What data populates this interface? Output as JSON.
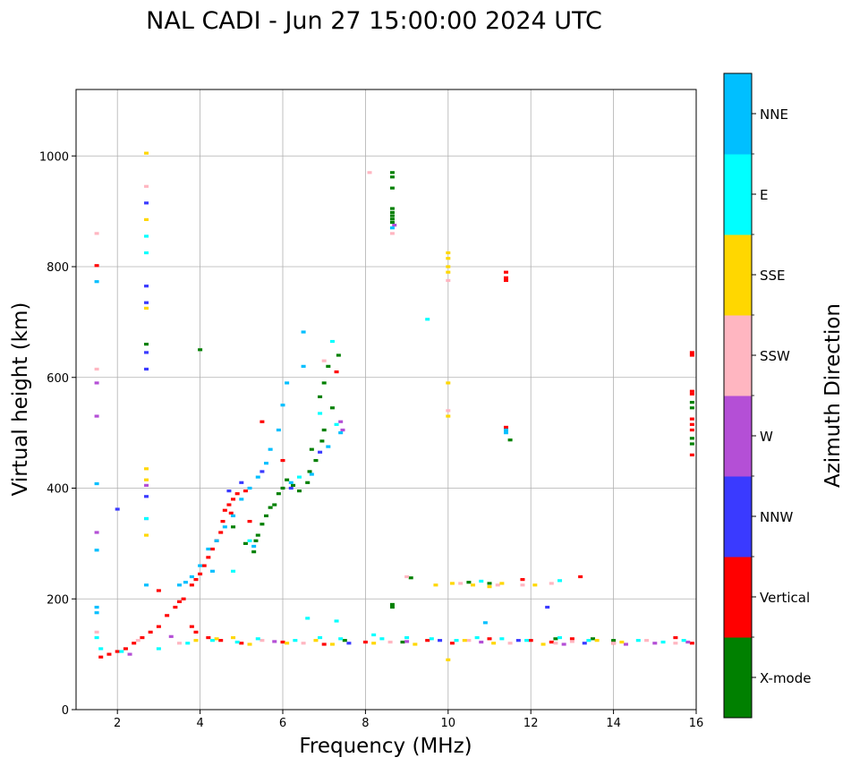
{
  "chart_data": {
    "type": "scatter",
    "title": "NAL CADI - Jun 27 15:00:00 2024 UTC",
    "xlabel": "Frequency (MHz)",
    "ylabel": "Virtual height (km)",
    "xlim": [
      1,
      16
    ],
    "ylim": [
      0,
      1120
    ],
    "xticks": [
      2,
      4,
      6,
      8,
      10,
      12,
      14,
      16
    ],
    "yticks": [
      0,
      200,
      400,
      600,
      800,
      1000
    ],
    "grid": true,
    "colorbar": {
      "label": "Azimuth Direction",
      "categories": [
        {
          "name": "X-mode",
          "color": "#008000"
        },
        {
          "name": "Vertical",
          "color": "#ff0000"
        },
        {
          "name": "NNW",
          "color": "#3a3aff"
        },
        {
          "name": "W",
          "color": "#b44fd6"
        },
        {
          "name": "SSW",
          "color": "#ffb6c1"
        },
        {
          "name": "SSE",
          "color": "#ffd700"
        },
        {
          "name": "E",
          "color": "#00ffff"
        },
        {
          "name": "NNE",
          "color": "#00bfff"
        }
      ]
    },
    "series": [
      {
        "name": "X-mode",
        "points": [
          [
            8.65,
            970
          ],
          [
            8.65,
            962
          ],
          [
            8.65,
            942
          ],
          [
            8.65,
            905
          ],
          [
            8.65,
            898
          ],
          [
            8.65,
            892
          ],
          [
            8.65,
            886
          ],
          [
            8.65,
            880
          ],
          [
            8.65,
            190
          ],
          [
            8.65,
            185
          ],
          [
            7.35,
            640
          ],
          [
            7.1,
            620
          ],
          [
            7.0,
            590
          ],
          [
            6.9,
            565
          ],
          [
            7.2,
            545
          ],
          [
            7.0,
            505
          ],
          [
            6.95,
            485
          ],
          [
            6.7,
            470
          ],
          [
            6.8,
            450
          ],
          [
            6.65,
            430
          ],
          [
            6.6,
            410
          ],
          [
            6.1,
            415
          ],
          [
            6.0,
            400
          ],
          [
            5.9,
            390
          ],
          [
            5.8,
            370
          ],
          [
            5.7,
            365
          ],
          [
            5.6,
            350
          ],
          [
            5.5,
            335
          ],
          [
            5.4,
            315
          ],
          [
            5.35,
            305
          ],
          [
            4.0,
            650
          ],
          [
            2.7,
            660
          ],
          [
            9.1,
            238
          ],
          [
            10.5,
            230
          ],
          [
            11.5,
            487
          ],
          [
            11.0,
            228
          ],
          [
            12.6,
            128
          ],
          [
            13.5,
            128
          ],
          [
            14.0,
            125
          ],
          [
            15.9,
            555
          ],
          [
            15.9,
            545
          ],
          [
            15.9,
            490
          ],
          [
            15.9,
            480
          ],
          [
            5.3,
            285
          ],
          [
            5.1,
            300
          ],
          [
            4.8,
            330
          ],
          [
            6.4,
            395
          ],
          [
            6.25,
            405
          ],
          [
            7.5,
            125
          ],
          [
            8.9,
            122
          ]
        ]
      },
      {
        "name": "Vertical",
        "points": [
          [
            1.5,
            802
          ],
          [
            11.4,
            790
          ],
          [
            11.4,
            780
          ],
          [
            11.4,
            775
          ],
          [
            15.9,
            645
          ],
          [
            15.9,
            640
          ],
          [
            15.9,
            575
          ],
          [
            15.9,
            570
          ],
          [
            15.9,
            525
          ],
          [
            15.9,
            515
          ],
          [
            15.9,
            505
          ],
          [
            15.9,
            460
          ],
          [
            11.4,
            510
          ],
          [
            7.3,
            610
          ],
          [
            6.0,
            450
          ],
          [
            5.5,
            520
          ],
          [
            5.1,
            395
          ],
          [
            4.9,
            390
          ],
          [
            4.8,
            380
          ],
          [
            4.7,
            370
          ],
          [
            4.6,
            360
          ],
          [
            4.55,
            340
          ],
          [
            4.5,
            320
          ],
          [
            4.4,
            305
          ],
          [
            4.3,
            290
          ],
          [
            4.2,
            275
          ],
          [
            4.1,
            260
          ],
          [
            4.0,
            245
          ],
          [
            3.9,
            235
          ],
          [
            3.8,
            225
          ],
          [
            3.6,
            200
          ],
          [
            3.4,
            185
          ],
          [
            3.2,
            170
          ],
          [
            3.0,
            150
          ],
          [
            2.8,
            140
          ],
          [
            2.6,
            130
          ],
          [
            2.4,
            120
          ],
          [
            2.2,
            110
          ],
          [
            2.0,
            105
          ],
          [
            1.8,
            100
          ],
          [
            1.6,
            95
          ],
          [
            3.8,
            150
          ],
          [
            3.9,
            140
          ],
          [
            4.2,
            130
          ],
          [
            4.5,
            125
          ],
          [
            5.0,
            120
          ],
          [
            6.0,
            122
          ],
          [
            7.0,
            118
          ],
          [
            8.0,
            122
          ],
          [
            9.5,
            125
          ],
          [
            10.1,
            120
          ],
          [
            11.0,
            128
          ],
          [
            11.8,
            235
          ],
          [
            12.0,
            125
          ],
          [
            12.5,
            122
          ],
          [
            13.0,
            128
          ],
          [
            13.2,
            240
          ],
          [
            14.0,
            120
          ],
          [
            15.5,
            130
          ],
          [
            15.9,
            120
          ],
          [
            3.0,
            215
          ],
          [
            3.5,
            195
          ],
          [
            5.2,
            340
          ],
          [
            4.75,
            355
          ]
        ]
      },
      {
        "name": "NNW",
        "points": [
          [
            2.7,
            915
          ],
          [
            2.7,
            765
          ],
          [
            2.7,
            735
          ],
          [
            2.7,
            645
          ],
          [
            2.7,
            615
          ],
          [
            2.7,
            385
          ],
          [
            2.7,
            345
          ],
          [
            2.0,
            362
          ],
          [
            12.4,
            185
          ],
          [
            5.0,
            410
          ],
          [
            5.5,
            430
          ],
          [
            6.2,
            400
          ],
          [
            7.6,
            120
          ],
          [
            9.8,
            125
          ],
          [
            11.7,
            125
          ],
          [
            13.3,
            120
          ],
          [
            4.7,
            395
          ],
          [
            6.9,
            465
          ]
        ]
      },
      {
        "name": "W",
        "points": [
          [
            1.5,
            530
          ],
          [
            1.5,
            320
          ],
          [
            1.5,
            590
          ],
          [
            2.7,
            405
          ],
          [
            8.7,
            875
          ],
          [
            7.4,
            520
          ],
          [
            7.45,
            505
          ],
          [
            9.0,
            123
          ],
          [
            10.8,
            122
          ],
          [
            14.3,
            118
          ],
          [
            15.0,
            120
          ],
          [
            15.8,
            122
          ],
          [
            2.3,
            100
          ],
          [
            3.3,
            132
          ],
          [
            5.8,
            123
          ],
          [
            12.8,
            118
          ]
        ]
      },
      {
        "name": "SSW",
        "points": [
          [
            1.5,
            860
          ],
          [
            1.5,
            615
          ],
          [
            2.7,
            945
          ],
          [
            8.1,
            970
          ],
          [
            8.65,
            860
          ],
          [
            10.0,
            775
          ],
          [
            10.0,
            540
          ],
          [
            9.0,
            240
          ],
          [
            10.3,
            228
          ],
          [
            11.2,
            225
          ],
          [
            11.8,
            225
          ],
          [
            12.5,
            228
          ],
          [
            13.0,
            123
          ],
          [
            14.0,
            120
          ],
          [
            1.5,
            140
          ],
          [
            2.5,
            125
          ],
          [
            3.5,
            120
          ],
          [
            5.5,
            125
          ],
          [
            6.5,
            120
          ],
          [
            8.6,
            122
          ],
          [
            10.5,
            125
          ],
          [
            11.5,
            120
          ],
          [
            12.6,
            120
          ],
          [
            14.8,
            125
          ],
          [
            15.5,
            120
          ],
          [
            7.0,
            630
          ]
        ]
      },
      {
        "name": "SSE",
        "points": [
          [
            2.7,
            1005
          ],
          [
            2.7,
            885
          ],
          [
            2.7,
            435
          ],
          [
            2.7,
            415
          ],
          [
            2.7,
            315
          ],
          [
            10.0,
            825
          ],
          [
            10.0,
            815
          ],
          [
            10.0,
            800
          ],
          [
            10.0,
            790
          ],
          [
            10.0,
            590
          ],
          [
            10.0,
            530
          ],
          [
            9.7,
            225
          ],
          [
            10.1,
            228
          ],
          [
            10.6,
            225
          ],
          [
            11.0,
            222
          ],
          [
            11.3,
            228
          ],
          [
            12.1,
            225
          ],
          [
            10.0,
            90
          ],
          [
            2.7,
            725
          ],
          [
            4.8,
            130
          ],
          [
            5.2,
            118
          ],
          [
            6.1,
            120
          ],
          [
            6.8,
            125
          ],
          [
            7.2,
            118
          ],
          [
            8.2,
            120
          ],
          [
            9.2,
            118
          ],
          [
            10.4,
            125
          ],
          [
            11.1,
            120
          ],
          [
            12.3,
            118
          ],
          [
            13.6,
            125
          ],
          [
            14.2,
            122
          ],
          [
            3.9,
            125
          ],
          [
            4.4,
            128
          ]
        ]
      },
      {
        "name": "E",
        "points": [
          [
            2.7,
            855
          ],
          [
            2.7,
            825
          ],
          [
            2.7,
            345
          ],
          [
            1.5,
            130
          ],
          [
            1.6,
            110
          ],
          [
            2.1,
            105
          ],
          [
            3.0,
            110
          ],
          [
            3.7,
            120
          ],
          [
            4.3,
            125
          ],
          [
            4.9,
            122
          ],
          [
            5.4,
            128
          ],
          [
            6.3,
            125
          ],
          [
            6.9,
            130
          ],
          [
            7.4,
            128
          ],
          [
            8.4,
            128
          ],
          [
            9.0,
            130
          ],
          [
            9.6,
            128
          ],
          [
            10.2,
            125
          ],
          [
            10.7,
            130
          ],
          [
            11.3,
            128
          ],
          [
            11.9,
            125
          ],
          [
            12.7,
            130
          ],
          [
            13.4,
            125
          ],
          [
            14.6,
            125
          ],
          [
            15.2,
            122
          ],
          [
            15.7,
            125
          ],
          [
            9.5,
            705
          ],
          [
            7.2,
            665
          ],
          [
            6.9,
            535
          ],
          [
            7.3,
            515
          ],
          [
            6.6,
            165
          ],
          [
            7.3,
            160
          ],
          [
            8.2,
            135
          ],
          [
            10.8,
            232
          ],
          [
            12.7,
            233
          ],
          [
            4.8,
            250
          ],
          [
            5.2,
            305
          ],
          [
            6.4,
            420
          ]
        ]
      },
      {
        "name": "NNE",
        "points": [
          [
            1.5,
            773
          ],
          [
            1.5,
            408
          ],
          [
            1.5,
            288
          ],
          [
            2.7,
            225
          ],
          [
            1.5,
            185
          ],
          [
            1.5,
            175
          ],
          [
            8.65,
            870
          ],
          [
            6.5,
            682
          ],
          [
            6.5,
            620
          ],
          [
            6.1,
            590
          ],
          [
            6.0,
            550
          ],
          [
            5.9,
            505
          ],
          [
            5.7,
            470
          ],
          [
            5.6,
            445
          ],
          [
            5.4,
            420
          ],
          [
            5.2,
            400
          ],
          [
            5.0,
            380
          ],
          [
            4.8,
            350
          ],
          [
            4.6,
            330
          ],
          [
            4.4,
            305
          ],
          [
            4.2,
            290
          ],
          [
            4.0,
            260
          ],
          [
            3.8,
            240
          ],
          [
            3.65,
            230
          ],
          [
            3.5,
            225
          ],
          [
            4.3,
            250
          ],
          [
            5.3,
            295
          ],
          [
            11.4,
            505
          ],
          [
            11.4,
            500
          ],
          [
            10.9,
            157
          ],
          [
            6.2,
            410
          ],
          [
            6.7,
            425
          ],
          [
            7.1,
            475
          ],
          [
            7.4,
            500
          ]
        ]
      }
    ]
  }
}
